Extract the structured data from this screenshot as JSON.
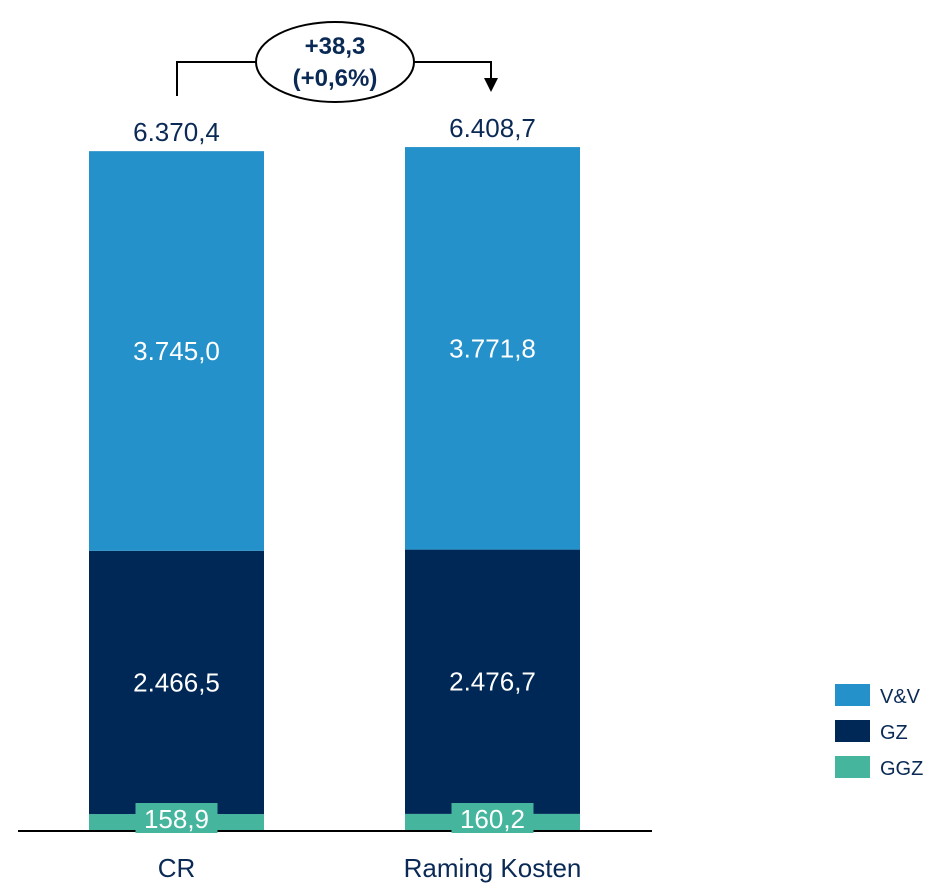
{
  "chart_data": {
    "type": "bar",
    "stacked": true,
    "categories": [
      "CR",
      "Raming Kosten"
    ],
    "series": [
      {
        "name": "GGZ",
        "color": "#45b59e",
        "values": [
          158.9,
          160.2
        ],
        "labels": [
          "158,9",
          "160,2"
        ]
      },
      {
        "name": "GZ",
        "color": "#002856",
        "values": [
          2466.5,
          2476.7
        ],
        "labels": [
          "2.466,5",
          "2.476,7"
        ]
      },
      {
        "name": "V&V",
        "color": "#2591ca",
        "values": [
          3745.0,
          3771.8
        ],
        "labels": [
          "3.745,0",
          "3.771,8"
        ]
      }
    ],
    "totals": [
      6370.4,
      6408.7
    ],
    "total_labels": [
      "6.370,4",
      "6.408,7"
    ],
    "difference": {
      "value_label": "+38,3",
      "percent_label": "(+0,6%)"
    },
    "legend_order": [
      "V&V",
      "GZ",
      "GGZ"
    ],
    "legend_position": "bottom-right",
    "grid": false
  }
}
